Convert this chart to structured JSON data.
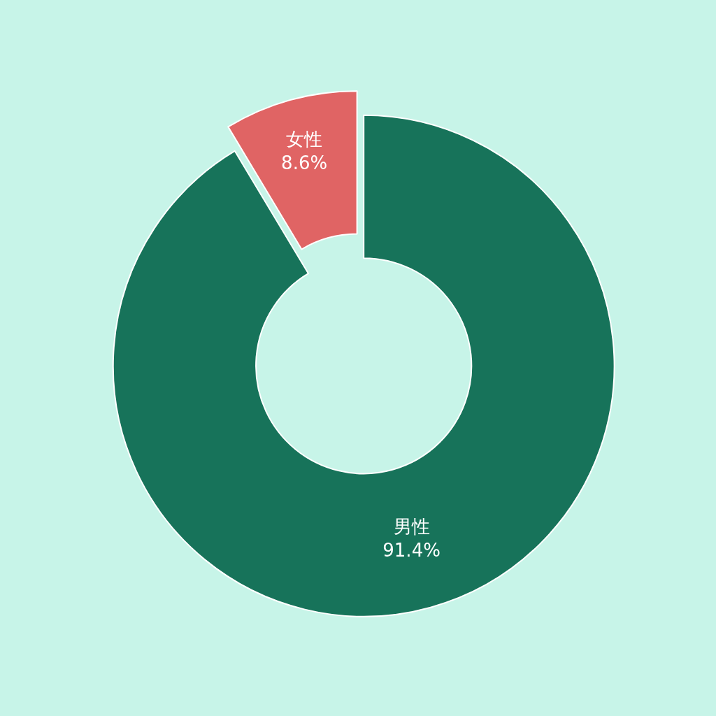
{
  "chart_data": {
    "type": "donut",
    "categories": [
      "男性",
      "女性"
    ],
    "values": [
      91.4,
      8.6
    ],
    "colors": [
      "#17735a",
      "#e06464"
    ],
    "value_labels": [
      "91.4%",
      "8.6%"
    ],
    "legend": false
  }
}
